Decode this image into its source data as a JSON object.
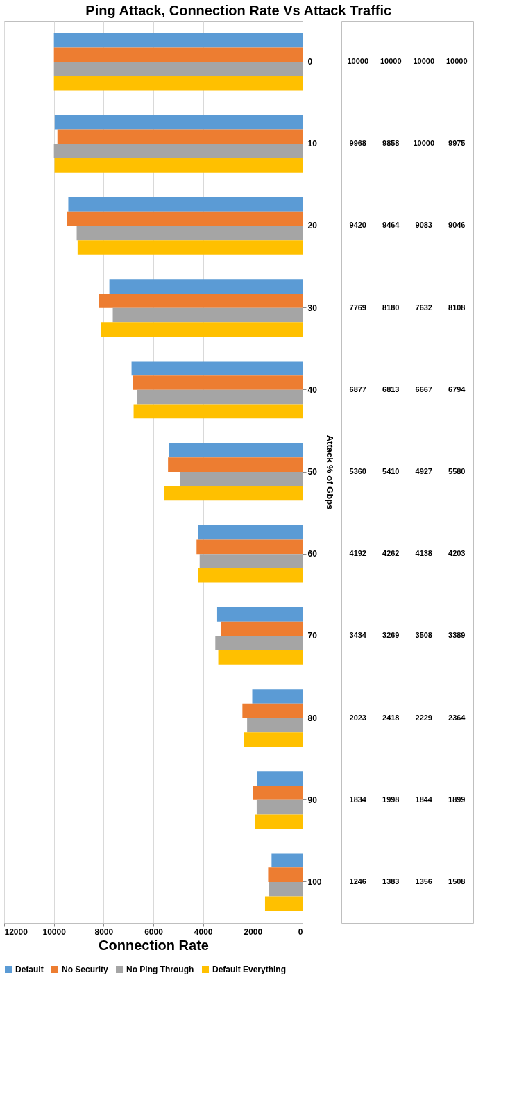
{
  "chart_data": {
    "type": "bar",
    "title": "Ping Attack, Connection Rate Vs Attack Traffic",
    "orientation": "horizontal",
    "xlabel": "Connection Rate",
    "ylabel": "Attack % of Gbps",
    "categories": [
      "0",
      "10",
      "20",
      "30",
      "40",
      "50",
      "60",
      "70",
      "80",
      "90",
      "100"
    ],
    "series": [
      {
        "name": "Default",
        "color": "#5b9bd5",
        "values": [
          10000,
          9968,
          9420,
          7769,
          6877,
          5360,
          4192,
          3434,
          2023,
          1834,
          1246
        ]
      },
      {
        "name": "No Security",
        "color": "#ed7d31",
        "values": [
          10000,
          9858,
          9464,
          8180,
          6813,
          5410,
          4262,
          3269,
          2418,
          1998,
          1383
        ]
      },
      {
        "name": "No Ping Through",
        "color": "#a5a5a5",
        "values": [
          10000,
          10000,
          9083,
          7632,
          6667,
          4927,
          4138,
          3508,
          2229,
          1844,
          1356
        ]
      },
      {
        "name": "Default Everything",
        "color": "#ffc000",
        "values": [
          10000,
          9975,
          9046,
          8108,
          6794,
          5580,
          4203,
          3389,
          2364,
          1899,
          1508
        ]
      }
    ],
    "xlim": [
      12000,
      0
    ],
    "xticks": [
      0,
      2000,
      4000,
      6000,
      8000,
      10000,
      12000
    ],
    "grid": "x",
    "legend": "bottom",
    "data_labels": true
  }
}
